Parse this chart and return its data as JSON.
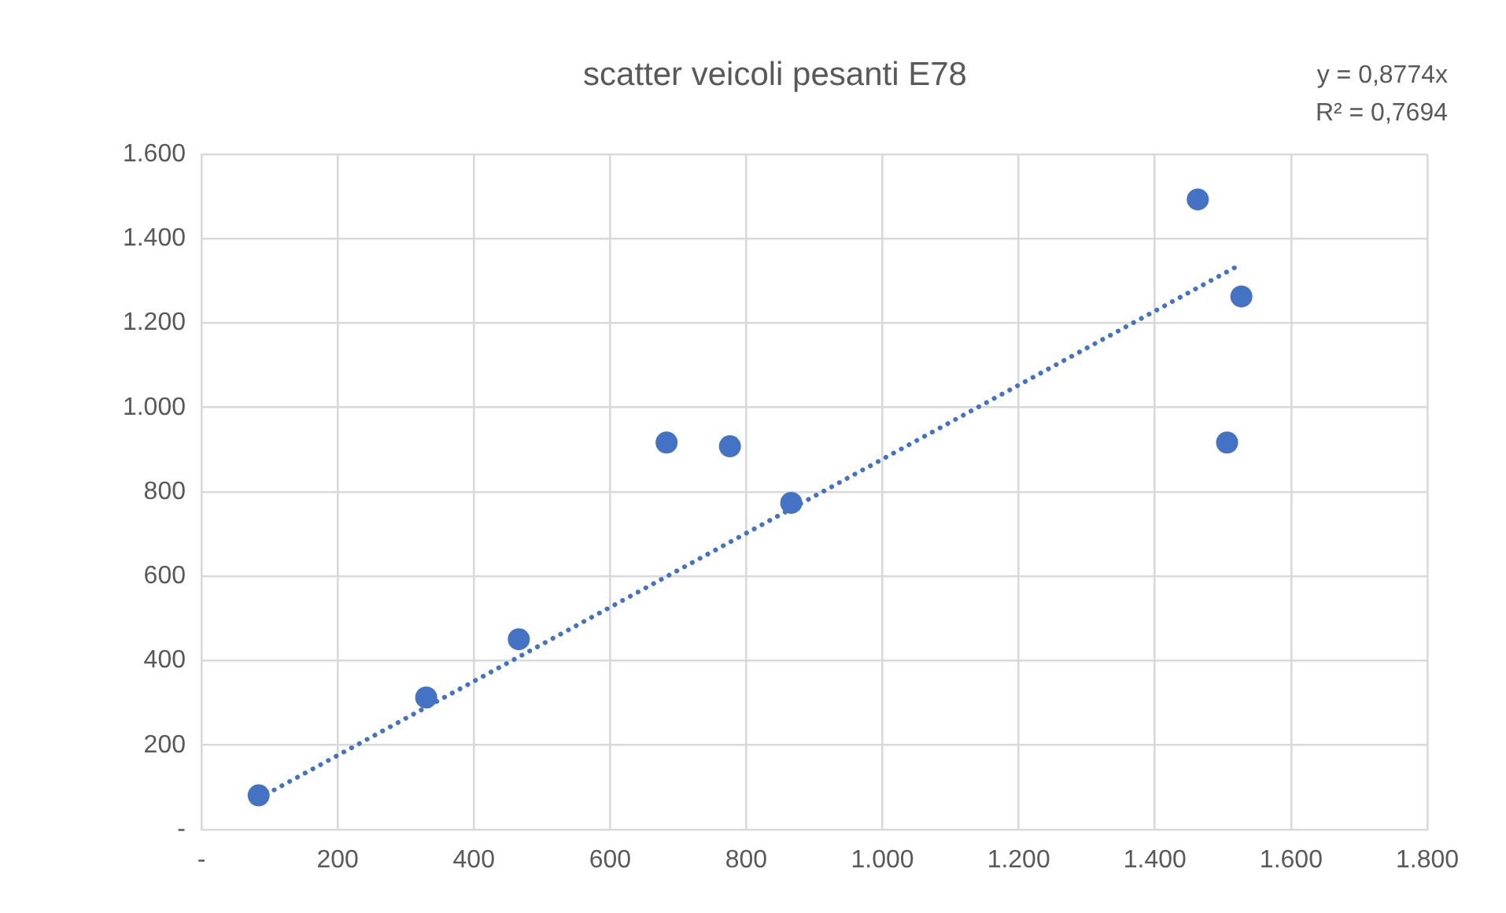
{
  "chart_data": {
    "type": "scatter",
    "title": "scatter veicoli pesanti E78",
    "annotations": [
      "y = 0,8774x",
      "R² = 0,7694"
    ],
    "series": [
      {
        "color": "#4472c4",
        "x": [
          84,
          330,
          466,
          683,
          776,
          866,
          1463,
          1527,
          1506
        ],
        "values": [
          81,
          313,
          451,
          917,
          908,
          774,
          1493,
          1263,
          917
        ]
      },
      {
        "type": "line",
        "color": "#4472c4",
        "line_style": "dotted",
        "marker": "none",
        "x": [
          84,
          1527
        ],
        "values": [
          74,
          1340
        ]
      }
    ],
    "marker": "circle",
    "grid": true,
    "legend": false,
    "xlim": [
      0,
      1800
    ],
    "xticks": [
      {
        "value": 0,
        "label": "-"
      },
      200,
      400,
      600,
      800,
      {
        "value": 1000,
        "label": "1.000"
      },
      {
        "value": 1200,
        "label": "1.200"
      },
      {
        "value": 1400,
        "label": "1.400"
      },
      {
        "value": 1600,
        "label": "1.600"
      },
      {
        "value": 1800,
        "label": "1.800"
      }
    ],
    "ylim": [
      0,
      1600
    ],
    "yticks": [
      {
        "value": 0,
        "label": "-"
      },
      200,
      400,
      600,
      800,
      {
        "value": 1000,
        "label": "1.000"
      },
      {
        "value": 1200,
        "label": "1.200"
      },
      {
        "value": 1400,
        "label": "1.400"
      },
      {
        "value": 1600,
        "label": "1.600"
      }
    ]
  }
}
